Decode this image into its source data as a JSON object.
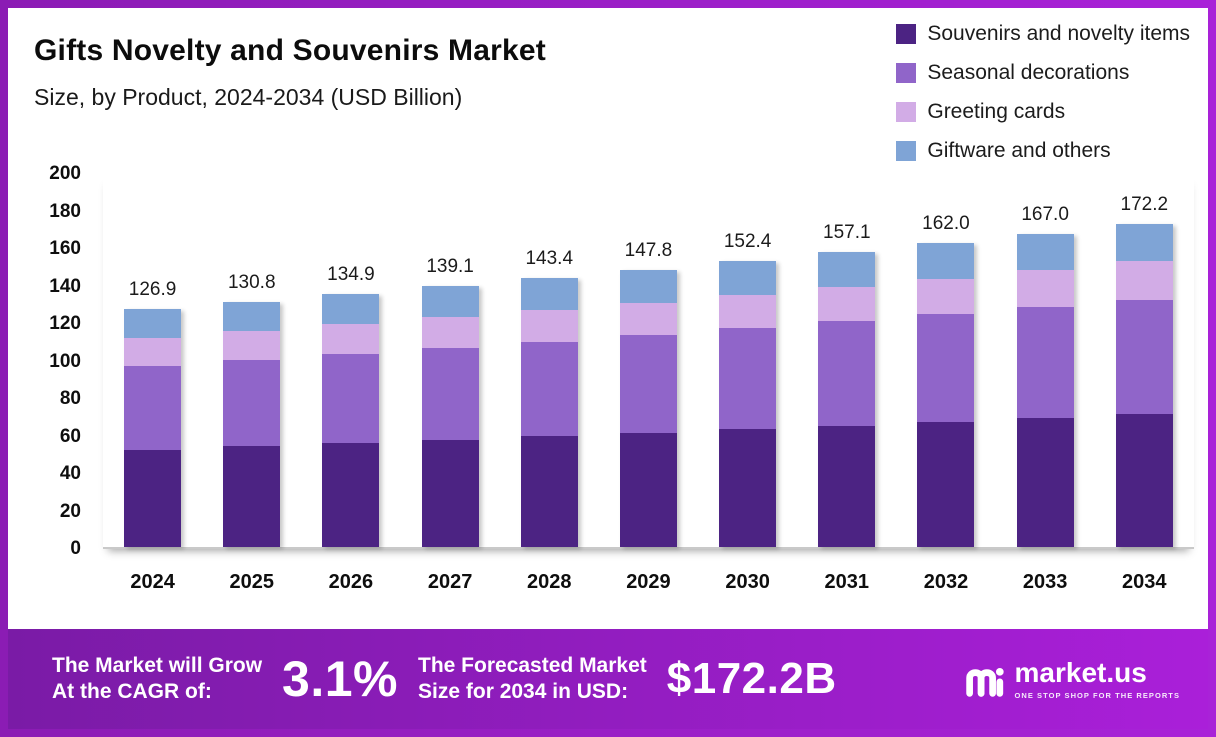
{
  "chart_data": {
    "type": "bar",
    "stacked": true,
    "title": "Gifts Novelty and Souvenirs Market",
    "subtitle": "Size, by Product, 2024-2034 (USD Billion)",
    "categories": [
      "2024",
      "2025",
      "2026",
      "2027",
      "2028",
      "2029",
      "2030",
      "2031",
      "2032",
      "2033",
      "2034"
    ],
    "totals": [
      126.9,
      130.8,
      134.9,
      139.1,
      143.4,
      147.8,
      152.4,
      157.1,
      162.0,
      167.0,
      172.2
    ],
    "total_labels": [
      "126.9",
      "130.8",
      "134.9",
      "139.1",
      "143.4",
      "147.8",
      "152.4",
      "157.1",
      "162.0",
      "167.0",
      "172.2"
    ],
    "series": [
      {
        "name": "Souvenirs and novelty items",
        "color": "#4c2383",
        "values": [
          52.0,
          53.7,
          55.4,
          57.2,
          59.0,
          60.9,
          62.8,
          64.8,
          66.8,
          68.9,
          71.0
        ]
      },
      {
        "name": "Seasonal decorations",
        "color": "#9065c9",
        "values": [
          44.5,
          45.9,
          47.4,
          48.9,
          50.5,
          52.1,
          53.8,
          55.5,
          57.3,
          59.1,
          61.0
        ]
      },
      {
        "name": "Greeting cards",
        "color": "#d2ace6",
        "values": [
          15.0,
          15.4,
          15.9,
          16.4,
          16.9,
          17.4,
          18.0,
          18.5,
          19.1,
          19.7,
          20.3
        ]
      },
      {
        "name": "Giftware and others",
        "color": "#7fa4d6",
        "values": [
          15.4,
          15.8,
          16.2,
          16.6,
          17.0,
          17.4,
          17.8,
          18.3,
          18.8,
          19.3,
          19.9
        ]
      }
    ],
    "ylim": [
      0,
      200
    ],
    "ytick_step": 20,
    "xlabel": "",
    "ylabel": "",
    "grid": false,
    "legend_position": "top-right"
  },
  "banner": {
    "cagr_label": "The Market will Grow\nAt the CAGR of:",
    "cagr_value": "3.1%",
    "forecast_label": "The Forecasted Market\nSize for 2034 in USD:",
    "forecast_value": "$172.2B",
    "logo_text": "market.us",
    "logo_tagline": "ONE STOP SHOP FOR THE REPORTS"
  },
  "theme": {
    "frame_gradient": [
      "#8b1cb4",
      "#a922d8"
    ],
    "banner_gradient": [
      "#7a1ba6",
      "#aa1fd9"
    ]
  }
}
